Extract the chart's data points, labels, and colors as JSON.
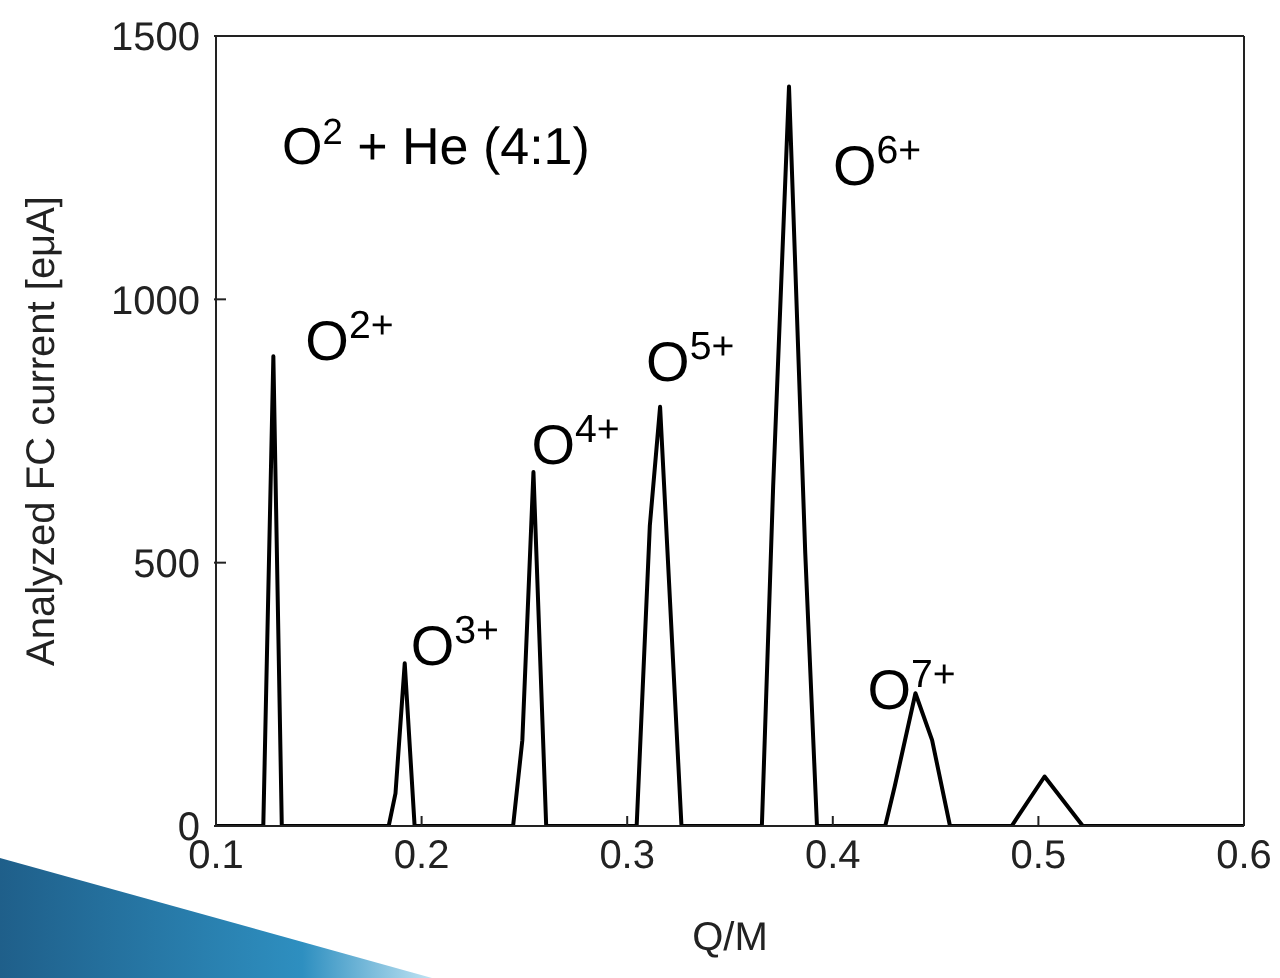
{
  "chart_data": {
    "type": "line",
    "xlabel": "Q/M",
    "ylabel": "Analyzed FC current [eμA]",
    "x": [
      0.1,
      0.123,
      0.1279,
      0.132,
      0.184,
      0.1873,
      0.1918,
      0.1966,
      0.2445,
      0.249,
      0.2544,
      0.2606,
      0.3046,
      0.311,
      0.316,
      0.3264,
      0.3655,
      0.371,
      0.3787,
      0.3866,
      0.3923,
      0.4255,
      0.4301,
      0.4402,
      0.4483,
      0.457,
      0.487,
      0.503,
      0.5216,
      0.6
    ],
    "series": [
      {
        "color": "#000000",
        "values": [
          0,
          0,
          892,
          0,
          0,
          62,
          309,
          0,
          0,
          163,
          672,
          0,
          0,
          570,
          796,
          0,
          0,
          646,
          1404,
          518,
          0,
          0,
          75,
          252,
          163,
          0,
          0,
          94,
          0,
          0
        ]
      }
    ],
    "xlim": [
      0.1,
      0.6
    ],
    "xticks": [
      0.1,
      0.2,
      0.3,
      0.4,
      0.5,
      0.6
    ],
    "ylim": [
      0,
      1500
    ],
    "yticks": [
      0,
      500,
      1000,
      1500
    ],
    "marker": "none",
    "line_style": "solid",
    "annotations": [
      "O$^{2}$ + He (4:1)",
      {
        "text": "O$^{2+}$",
        "x": 0.1279,
        "y": 892
      },
      {
        "text": "O$^{3+}$",
        "x": 0.1918,
        "y": 309
      },
      {
        "text": "O$^{4+}$",
        "x": 0.2544,
        "y": 672
      },
      {
        "text": "O$^{5+}$",
        "x": 0.316,
        "y": 796
      },
      {
        "text": "O$^{6+}$",
        "x": 0.3787,
        "y": 1404
      },
      {
        "text": "O$^{7+}$",
        "x": 0.4402,
        "y": 252
      }
    ]
  }
}
